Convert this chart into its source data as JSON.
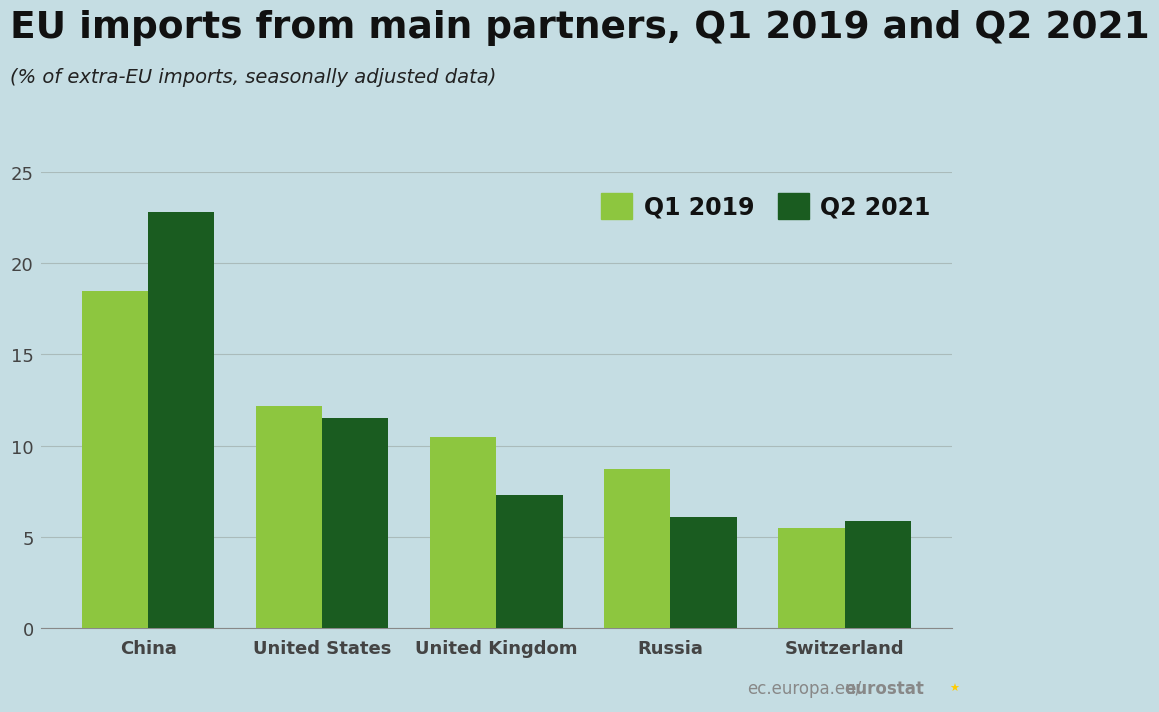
{
  "title": "EU imports from main partners, Q1 2019 and Q2 2021",
  "subtitle": "(% of extra-EU imports, seasonally adjusted data)",
  "categories": [
    "China",
    "United States",
    "United Kingdom",
    "Russia",
    "Switzerland"
  ],
  "q1_2019": [
    18.5,
    12.2,
    10.5,
    8.7,
    5.5
  ],
  "q2_2021": [
    22.8,
    11.5,
    7.3,
    6.1,
    5.9
  ],
  "color_q1": "#8DC63F",
  "color_q2": "#1A5C20",
  "background_color": "#C5DDE3",
  "legend_q1": "Q1 2019",
  "legend_q2": "Q2 2021",
  "ylim": [
    0,
    25
  ],
  "yticks": [
    0,
    5,
    10,
    15,
    20,
    25
  ],
  "title_fontsize": 27,
  "subtitle_fontsize": 14,
  "tick_fontsize": 13,
  "legend_fontsize": 17,
  "footer_text_light": "ec.europa.eu/",
  "footer_text_bold": "eurostat",
  "bar_width": 0.38
}
